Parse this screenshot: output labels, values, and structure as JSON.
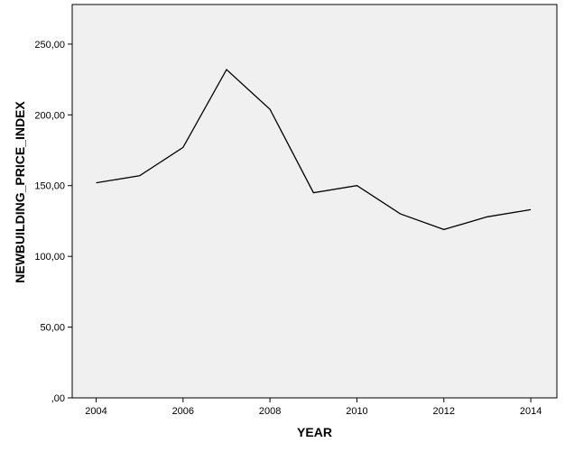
{
  "chart_data": {
    "type": "line",
    "xlabel": "YEAR",
    "ylabel": "NEWBUILDING_PRICE_INDEX",
    "x": [
      2004,
      2005,
      2006,
      2007,
      2008,
      2009,
      2010,
      2011,
      2012,
      2013,
      2014
    ],
    "series": [
      {
        "values": [
          152,
          157,
          177,
          232,
          204,
          145,
          150,
          130,
          119,
          128,
          133
        ]
      }
    ],
    "xlim": [
      2003.45,
      2014.6
    ],
    "ylim": [
      0,
      278
    ],
    "xticks": [
      2004,
      2006,
      2008,
      2010,
      2012,
      2014
    ],
    "xtick_labels": [
      "2004",
      "2006",
      "2008",
      "2010",
      "2012",
      "2014"
    ],
    "yticks": [
      0,
      50,
      100,
      150,
      200,
      250
    ],
    "ytick_labels": [
      ",00",
      "50,00",
      "100,00",
      "150,00",
      "200,00",
      "250,00"
    ],
    "grid": false,
    "colors": {
      "plot_background": "#f0f0f0",
      "line": "#000000",
      "axis": "#000000"
    }
  }
}
